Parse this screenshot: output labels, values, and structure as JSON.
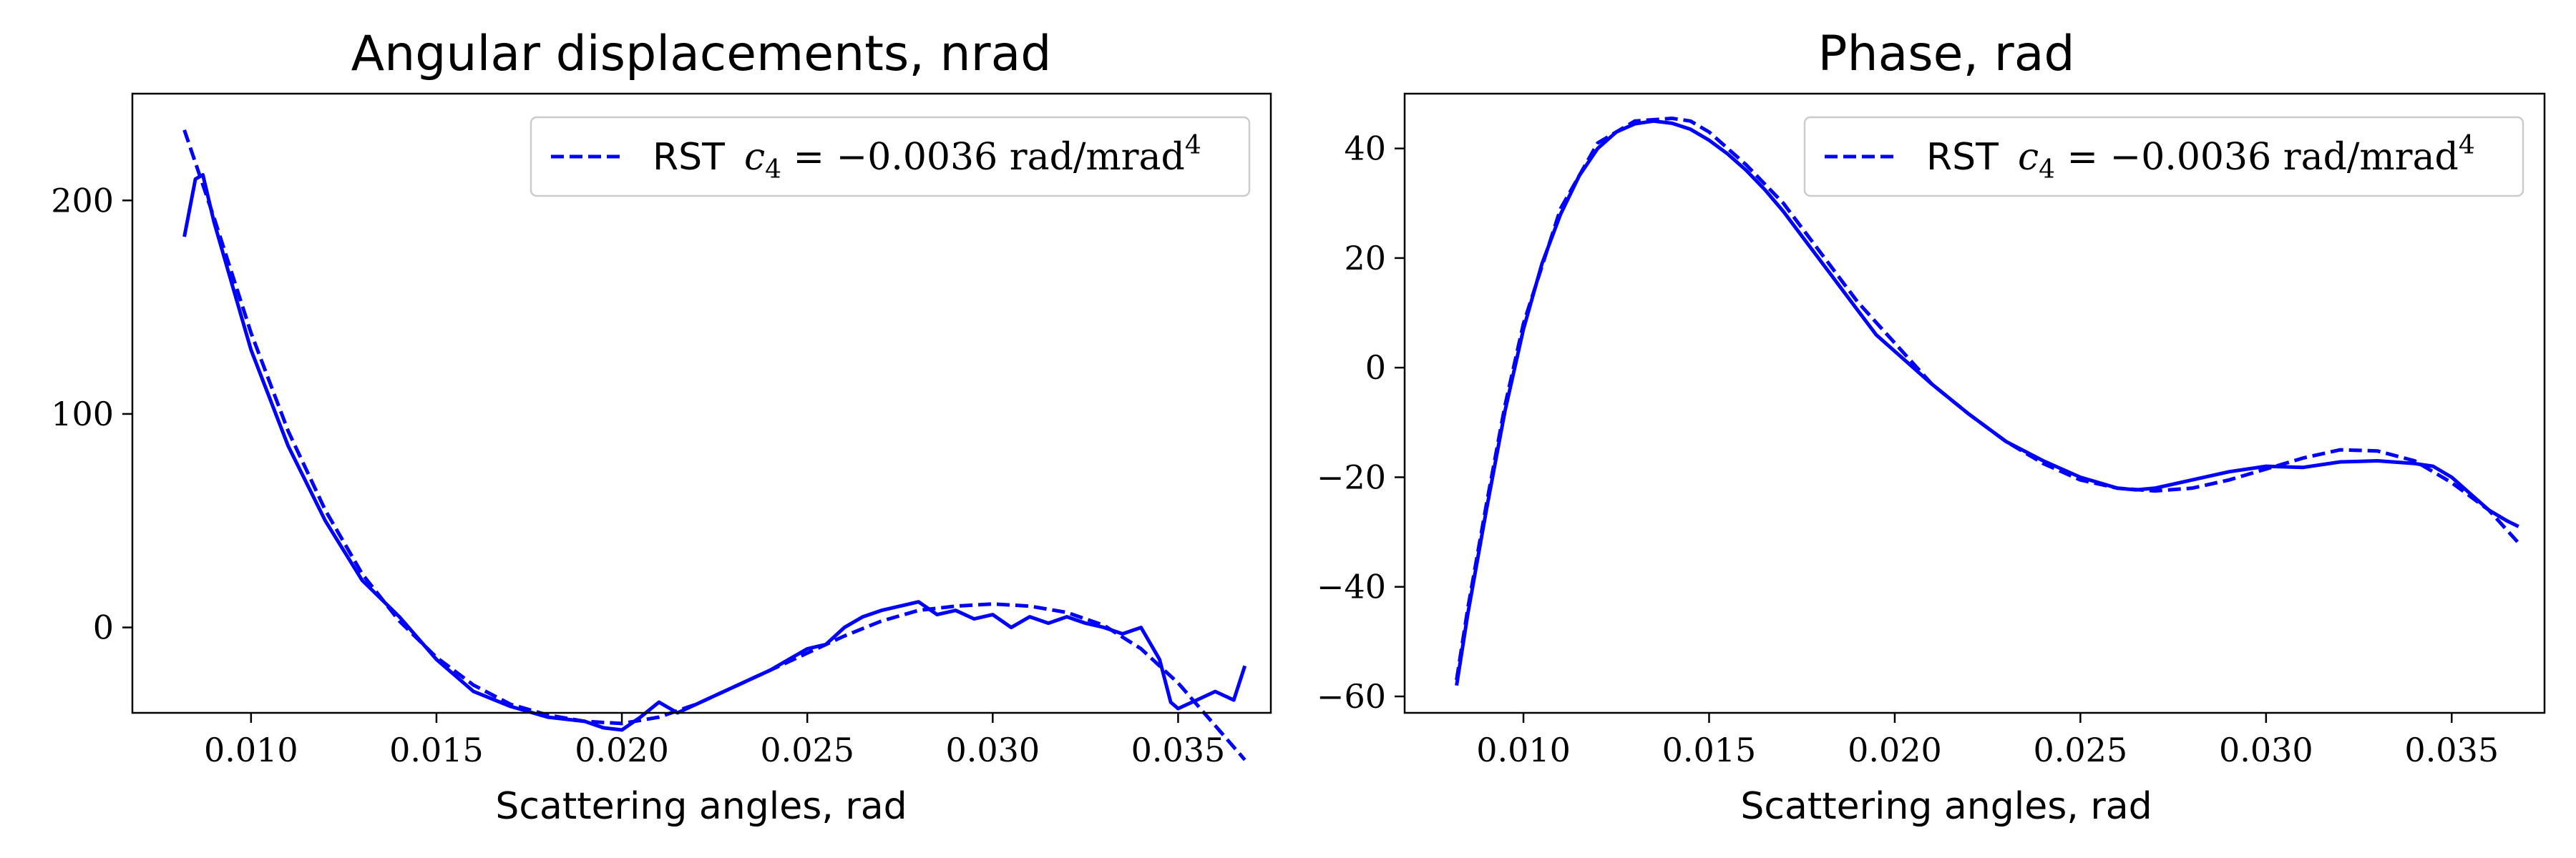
{
  "chart_data": [
    {
      "type": "line",
      "title": "Angular displacements, nrad",
      "xlabel": "Scattering angles, rad",
      "ylabel": "",
      "xlim": [
        0.0068,
        0.0375
      ],
      "ylim": [
        -40,
        250
      ],
      "xticks": [
        0.01,
        0.015,
        0.02,
        0.025,
        0.03,
        0.035
      ],
      "xtick_labels": [
        "0.010",
        "0.015",
        "0.020",
        "0.025",
        "0.030",
        "0.035"
      ],
      "yticks": [
        0,
        100,
        200
      ],
      "ytick_labels": [
        "0",
        "100",
        "200"
      ],
      "grid": false,
      "legend": {
        "position": "top-right",
        "entries": [
          {
            "text": "RST",
            "math": "c4 = −0.0036 rad/mrad^4",
            "style": "dashed"
          }
        ]
      },
      "series": [
        {
          "style": "solid",
          "color": "#0000ff",
          "x": [
            0.0082,
            0.0085,
            0.0087,
            0.009,
            0.0095,
            0.01,
            0.011,
            0.012,
            0.013,
            0.014,
            0.015,
            0.016,
            0.017,
            0.018,
            0.019,
            0.0195,
            0.02,
            0.0205,
            0.021,
            0.0215,
            0.022,
            0.0225,
            0.023,
            0.0235,
            0.024,
            0.0245,
            0.025,
            0.0255,
            0.026,
            0.0265,
            0.027,
            0.0275,
            0.028,
            0.0285,
            0.029,
            0.0295,
            0.03,
            0.0305,
            0.031,
            0.0315,
            0.032,
            0.0325,
            0.033,
            0.0335,
            0.034,
            0.0345,
            0.0348,
            0.035,
            0.0355,
            0.036,
            0.0365,
            0.0368
          ],
          "y": [
            183,
            210,
            212,
            190,
            160,
            130,
            85,
            50,
            22,
            5,
            -15,
            -30,
            -37,
            -42,
            -44,
            -47,
            -48,
            -42,
            -35,
            -40,
            -36,
            -32,
            -28,
            -24,
            -20,
            -15,
            -10,
            -8,
            0,
            5,
            8,
            10,
            12,
            6,
            8,
            4,
            6,
            0,
            5,
            2,
            5,
            2,
            0,
            -3,
            0,
            -15,
            -35,
            -38,
            -34,
            -30,
            -34,
            -18
          ]
        },
        {
          "style": "dashed",
          "color": "#0000ff",
          "x": [
            0.0082,
            0.009,
            0.01,
            0.011,
            0.012,
            0.013,
            0.014,
            0.015,
            0.016,
            0.017,
            0.018,
            0.019,
            0.02,
            0.021,
            0.022,
            0.023,
            0.024,
            0.025,
            0.026,
            0.027,
            0.028,
            0.029,
            0.03,
            0.031,
            0.032,
            0.033,
            0.034,
            0.035,
            0.036,
            0.0368
          ],
          "y": [
            233,
            192,
            138,
            92,
            55,
            25,
            3,
            -14,
            -27,
            -36,
            -41,
            -44,
            -45,
            -42,
            -36,
            -28,
            -20,
            -12,
            -4,
            3,
            8,
            10,
            11,
            10,
            7,
            1,
            -10,
            -26,
            -46,
            -62
          ]
        }
      ]
    },
    {
      "type": "line",
      "title": "Phase, rad",
      "xlabel": "Scattering angles, rad",
      "ylabel": "",
      "xlim": [
        0.0068,
        0.0375
      ],
      "ylim": [
        -63,
        50
      ],
      "xticks": [
        0.01,
        0.015,
        0.02,
        0.025,
        0.03,
        0.035
      ],
      "xtick_labels": [
        "0.010",
        "0.015",
        "0.020",
        "0.025",
        "0.030",
        "0.035"
      ],
      "yticks": [
        -60,
        -40,
        -20,
        0,
        20,
        40
      ],
      "ytick_labels": [
        "−60",
        "−40",
        "−20",
        "0",
        "20",
        "40"
      ],
      "grid": false,
      "legend": {
        "position": "top-right",
        "entries": [
          {
            "text": "RST",
            "math": "c4 = −0.0036 rad/mrad^4",
            "style": "dashed"
          }
        ]
      },
      "series": [
        {
          "style": "solid",
          "color": "#0000ff",
          "x": [
            0.0082,
            0.0085,
            0.009,
            0.0095,
            0.01,
            0.0105,
            0.011,
            0.0115,
            0.012,
            0.0125,
            0.013,
            0.0135,
            0.014,
            0.0145,
            0.015,
            0.0155,
            0.016,
            0.0165,
            0.017,
            0.0175,
            0.018,
            0.0185,
            0.019,
            0.0195,
            0.02,
            0.021,
            0.022,
            0.023,
            0.024,
            0.025,
            0.026,
            0.0265,
            0.027,
            0.028,
            0.029,
            0.03,
            0.031,
            0.032,
            0.033,
            0.034,
            0.0345,
            0.035,
            0.0355,
            0.036,
            0.0365,
            0.0368
          ],
          "y": [
            -58,
            -45,
            -26,
            -8,
            7,
            19,
            28,
            35,
            40,
            43,
            44.5,
            45,
            44.6,
            43.5,
            41.5,
            39,
            36,
            32.5,
            28.5,
            24,
            19.5,
            15,
            10.5,
            6,
            3,
            -3,
            -8.5,
            -13.5,
            -17,
            -20,
            -22,
            -22.3,
            -22,
            -20.5,
            -19,
            -18,
            -18.2,
            -17.2,
            -17,
            -17.5,
            -18,
            -20,
            -23,
            -26,
            -28,
            -29
          ]
        },
        {
          "style": "dashed",
          "color": "#0000ff",
          "x": [
            0.0082,
            0.0085,
            0.009,
            0.0095,
            0.01,
            0.011,
            0.012,
            0.013,
            0.014,
            0.0145,
            0.015,
            0.016,
            0.017,
            0.018,
            0.019,
            0.02,
            0.021,
            0.022,
            0.023,
            0.024,
            0.025,
            0.026,
            0.027,
            0.028,
            0.029,
            0.03,
            0.031,
            0.032,
            0.033,
            0.034,
            0.035,
            0.036,
            0.0368
          ],
          "y": [
            -57,
            -44,
            -25,
            -7,
            8,
            29,
            41,
            45,
            45.5,
            45,
            43,
            37,
            30,
            21,
            12,
            4.5,
            -3,
            -8.5,
            -13.5,
            -17.5,
            -20.5,
            -22,
            -22.5,
            -22,
            -20.5,
            -18.5,
            -16.5,
            -15,
            -15.2,
            -17,
            -21,
            -26,
            -32
          ]
        }
      ]
    }
  ]
}
